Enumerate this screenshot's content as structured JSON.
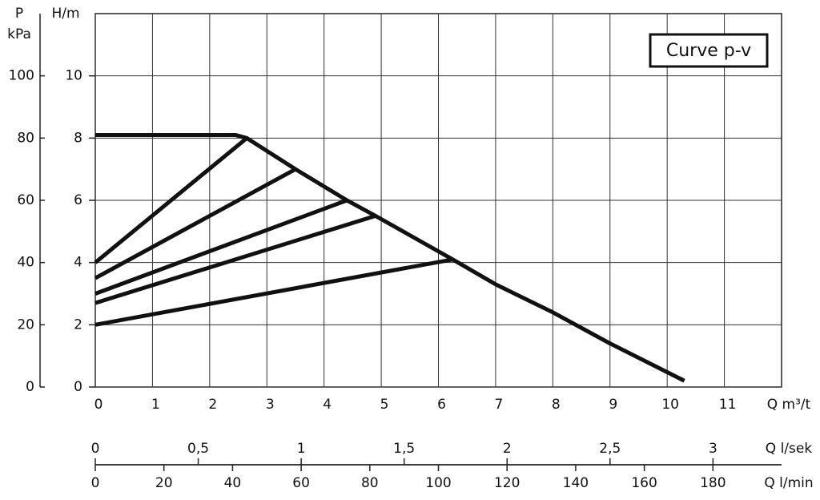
{
  "chart_data": {
    "type": "line",
    "annotation": "Curve  p-v",
    "ylabel": "H/m",
    "y2label": "P",
    "y2unit": "kPa",
    "xlabel": "Q m³/t",
    "xlim": [
      0,
      12
    ],
    "xticks": [
      0,
      1,
      2,
      3,
      4,
      5,
      6,
      7,
      8,
      9,
      10,
      11
    ],
    "ylim": [
      0,
      12
    ],
    "yticks": [
      0,
      2,
      4,
      6,
      8,
      10
    ],
    "y2lim": [
      0,
      120
    ],
    "y2ticks": [
      0,
      20,
      40,
      60,
      80,
      100
    ],
    "grid": true,
    "color": "#111111",
    "x2label": "Q l/sek",
    "x2lim": [
      0,
      3.333
    ],
    "x2ticks": [
      0,
      {
        "value": 0.5,
        "label": "0,5"
      },
      1,
      {
        "value": 1.5,
        "label": "1,5"
      },
      2,
      {
        "value": 2.5,
        "label": "2,5"
      },
      3
    ],
    "x3label": "Q l/min",
    "x3lim": [
      0,
      200
    ],
    "x3ticks": [
      0,
      20,
      40,
      60,
      80,
      100,
      120,
      140,
      160,
      180
    ],
    "series": [
      {
        "x": [
          0,
          2.45,
          2.65,
          3.5,
          4.4,
          4.9,
          6.25,
          7,
          8,
          9,
          10.3
        ],
        "values": [
          8.1,
          8.1,
          8.0,
          7.0,
          6.0,
          5.5,
          4.1,
          3.3,
          2.4,
          1.4,
          0.2
        ]
      },
      {
        "x": [
          0,
          2.65
        ],
        "values": [
          4.0,
          8.0
        ]
      },
      {
        "x": [
          0,
          3.5
        ],
        "values": [
          3.5,
          7.0
        ]
      },
      {
        "x": [
          0,
          4.4
        ],
        "values": [
          3.0,
          6.0
        ]
      },
      {
        "x": [
          0,
          4.9
        ],
        "values": [
          2.7,
          5.5
        ]
      },
      {
        "x": [
          0,
          6.25
        ],
        "values": [
          2.0,
          4.1
        ]
      }
    ]
  }
}
